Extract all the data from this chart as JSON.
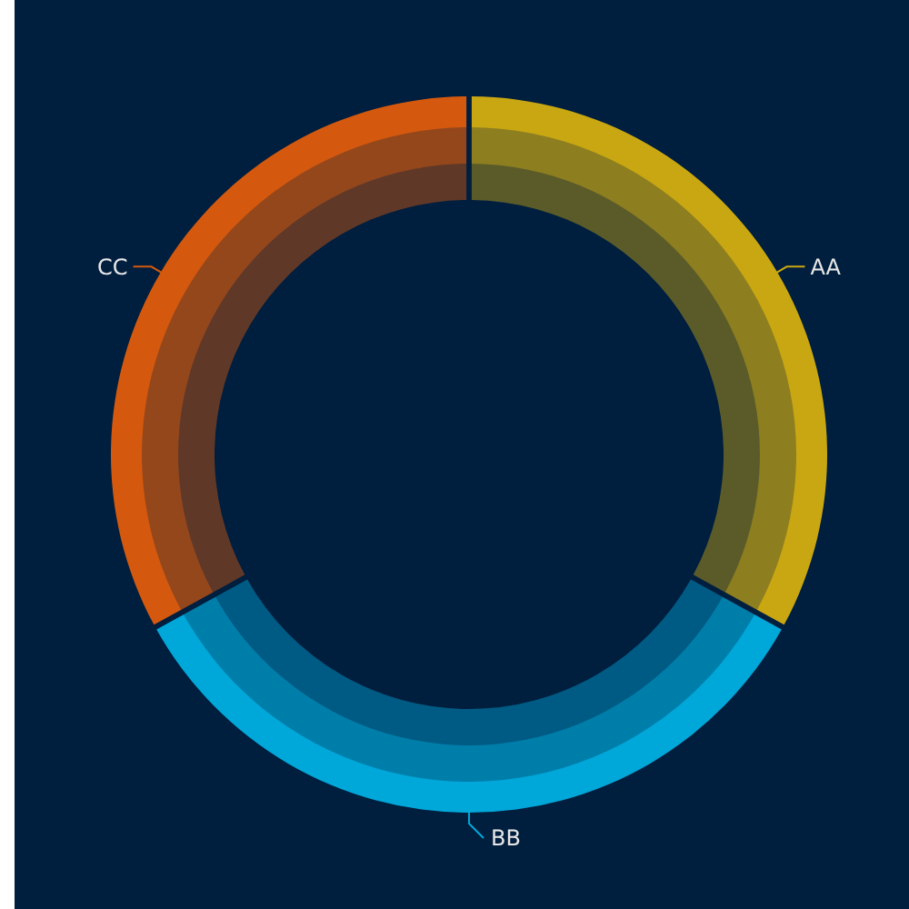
{
  "chart_data": {
    "type": "donut",
    "categories": [
      "AA",
      "BB",
      "CC"
    ],
    "values": [
      33,
      34,
      33
    ],
    "colors": [
      "#c9a712",
      "#00a7d9",
      "#d4590e"
    ]
  }
}
